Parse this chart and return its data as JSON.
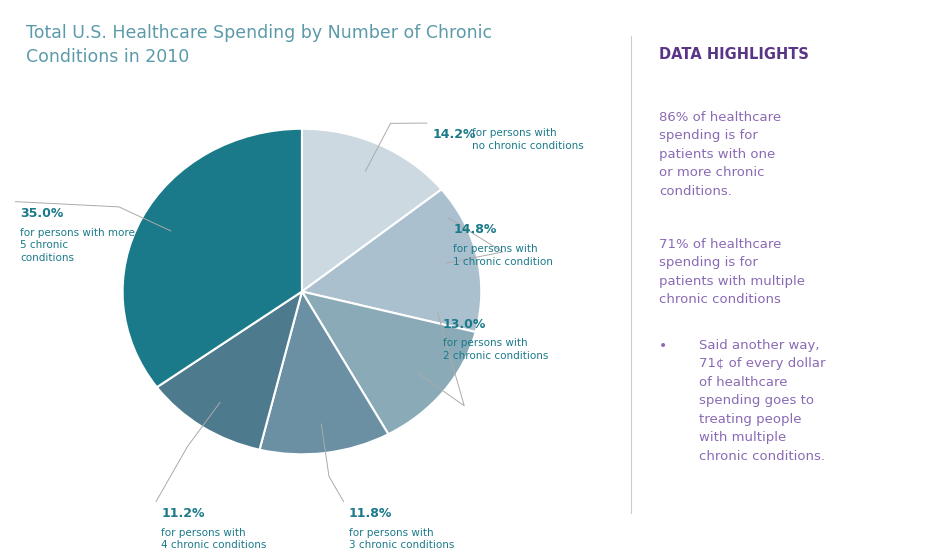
{
  "title": "Total U.S. Healthcare Spending by Number of Chronic\nConditions in 2010",
  "title_color": "#5b9aaa",
  "title_fontsize": 12.5,
  "slices": [
    14.2,
    14.8,
    13.0,
    11.8,
    11.2,
    35.0
  ],
  "colors": [
    "#ccd9e0",
    "#aac0cf",
    "#8aaab8",
    "#6b90a4",
    "#4e7a8e",
    "#1a7a8a"
  ],
  "pct_labels": [
    "14.2%",
    "14.8%",
    "13.0%",
    "11.8%",
    "11.2%",
    "35.0%"
  ],
  "sub_labels": [
    "for persons with\nno chronic conditions",
    "for persons with\n1 chronic condition",
    "for persons with\n2 chronic conditions",
    "for persons with\n3 chronic conditions",
    "for persons with\n4 chronic conditions",
    "for persons with more than\n5 chronic\nconditions"
  ],
  "highlight_title": "DATA HIGHLIGHTS",
  "highlight_title_color": "#5a3585",
  "highlight_text1": "86% of healthcare\nspending is for\npatients with one\nor more chronic\nconditions.",
  "highlight_text2": "71% of healthcare\nspending is for\npatients with multiple\nchronic conditions",
  "highlight_text3": "Said another way,\n71¢ of every dollar\nof healthcare\nspending goes to\ntreating people\nwith multiple\nchronic conditions.",
  "highlight_text_color": "#8a6ab5",
  "bg_color": "#ffffff",
  "label_color": "#1a7a8a",
  "line_color": "#aaaaaa"
}
